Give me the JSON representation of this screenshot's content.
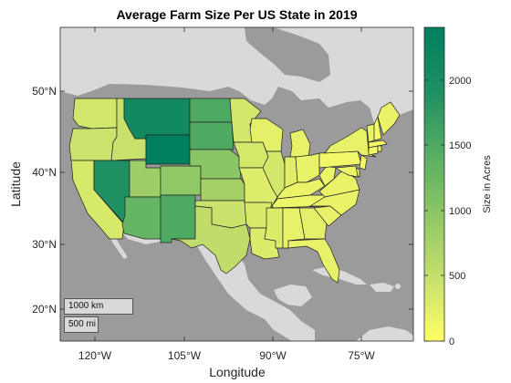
{
  "title": "Average Farm Size Per US State in 2019",
  "axes": {
    "xlabel": "Longitude",
    "ylabel": "Latitude",
    "xticks": [
      "120°W",
      "105°W",
      "90°W",
      "75°W"
    ],
    "yticks": [
      "50°N",
      "40°N",
      "30°N",
      "20°N"
    ],
    "lon_range": [
      -125,
      -65
    ],
    "lat_range": [
      15,
      58
    ]
  },
  "colorbar": {
    "label": "Size in Acres",
    "ticks": [
      "0",
      "500",
      "1000",
      "1500",
      "2000"
    ],
    "range": [
      0,
      2400
    ],
    "colormap": [
      "#ffff66",
      "#c6e06c",
      "#8fc766",
      "#55ad63",
      "#1d8f62",
      "#007f5f"
    ]
  },
  "scalebar": {
    "km": "1000 km",
    "mi": "500 mi"
  },
  "colors": {
    "ocean": "#9b9b9b",
    "land": "#d9d9d9",
    "border": "#222222"
  },
  "states": [
    {
      "name": "WA",
      "acres": 390
    },
    {
      "name": "OR",
      "acres": 440
    },
    {
      "name": "CA",
      "acres": 340
    },
    {
      "name": "ID",
      "acres": 470
    },
    {
      "name": "NV",
      "acres": 1900
    },
    {
      "name": "UT",
      "acres": 830
    },
    {
      "name": "AZ",
      "acres": 1300
    },
    {
      "name": "MT",
      "acres": 2100
    },
    {
      "name": "WY",
      "acres": 2400
    },
    {
      "name": "CO",
      "acres": 950
    },
    {
      "name": "NM",
      "acres": 1500
    },
    {
      "name": "ND",
      "acres": 1500
    },
    {
      "name": "SD",
      "acres": 1500
    },
    {
      "name": "NE",
      "acres": 1000
    },
    {
      "name": "KS",
      "acres": 780
    },
    {
      "name": "OK",
      "acres": 450
    },
    {
      "name": "TX",
      "acres": 530
    },
    {
      "name": "MN",
      "acres": 370
    },
    {
      "name": "IA",
      "acres": 350
    },
    {
      "name": "MO",
      "acres": 290
    },
    {
      "name": "AR",
      "acres": 320
    },
    {
      "name": "LA",
      "acres": 300
    },
    {
      "name": "WI",
      "acres": 230
    },
    {
      "name": "IL",
      "acres": 370
    },
    {
      "name": "MI",
      "acres": 200
    },
    {
      "name": "IN",
      "acres": 260
    },
    {
      "name": "OH",
      "acres": 190
    },
    {
      "name": "KY",
      "acres": 170
    },
    {
      "name": "TN",
      "acres": 150
    },
    {
      "name": "MS",
      "acres": 300
    },
    {
      "name": "AL",
      "acres": 200
    },
    {
      "name": "GA",
      "acres": 230
    },
    {
      "name": "FL",
      "acres": 200
    },
    {
      "name": "SC",
      "acres": 200
    },
    {
      "name": "NC",
      "acres": 180
    },
    {
      "name": "VA",
      "acres": 180
    },
    {
      "name": "WV",
      "acres": 160
    },
    {
      "name": "PA",
      "acres": 130
    },
    {
      "name": "NY",
      "acres": 200
    },
    {
      "name": "VT",
      "acres": 180
    },
    {
      "name": "NH",
      "acres": 100
    },
    {
      "name": "ME",
      "acres": 180
    },
    {
      "name": "MA",
      "acres": 70
    },
    {
      "name": "CT",
      "acres": 70
    },
    {
      "name": "RI",
      "acres": 60
    },
    {
      "name": "NJ",
      "acres": 80
    },
    {
      "name": "DE",
      "acres": 210
    },
    {
      "name": "MD",
      "acres": 160
    }
  ]
}
